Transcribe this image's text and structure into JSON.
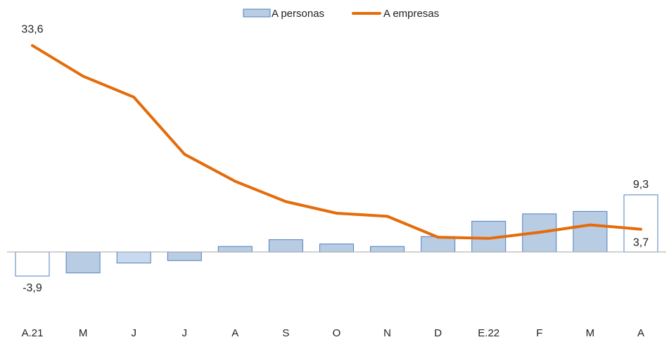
{
  "chart_data": {
    "type": "bar",
    "categories": [
      "A.21",
      "M",
      "J",
      "J",
      "A",
      "S",
      "O",
      "N",
      "D",
      "E.22",
      "F",
      "M",
      "A"
    ],
    "series": [
      {
        "name": "A personas",
        "type": "bar",
        "values": [
          -3.9,
          -3.4,
          -1.8,
          -1.4,
          0.9,
          2.0,
          1.3,
          0.9,
          2.5,
          5.0,
          6.2,
          6.6,
          9.3
        ],
        "color": "#b8cce4",
        "stroke": "#4f81bd"
      },
      {
        "name": "A empresas",
        "type": "line",
        "values": [
          33.6,
          28.6,
          25.2,
          15.9,
          11.5,
          8.2,
          6.3,
          5.8,
          2.4,
          2.2,
          3.2,
          4.4,
          3.7
        ],
        "color": "#e46c0a"
      }
    ],
    "data_labels": [
      {
        "series": 0,
        "index": 0,
        "text": "-3,9"
      },
      {
        "series": 1,
        "index": 0,
        "text": "33,6"
      },
      {
        "series": 0,
        "index": 12,
        "text": "9,3"
      },
      {
        "series": 1,
        "index": 12,
        "text": "3,7"
      }
    ],
    "highlight_bars": [
      0,
      12
    ],
    "ylim": [
      -9.5,
      37
    ],
    "grid": false,
    "legend_position": "top-center",
    "title": "",
    "xlabel": "",
    "ylabel": ""
  }
}
